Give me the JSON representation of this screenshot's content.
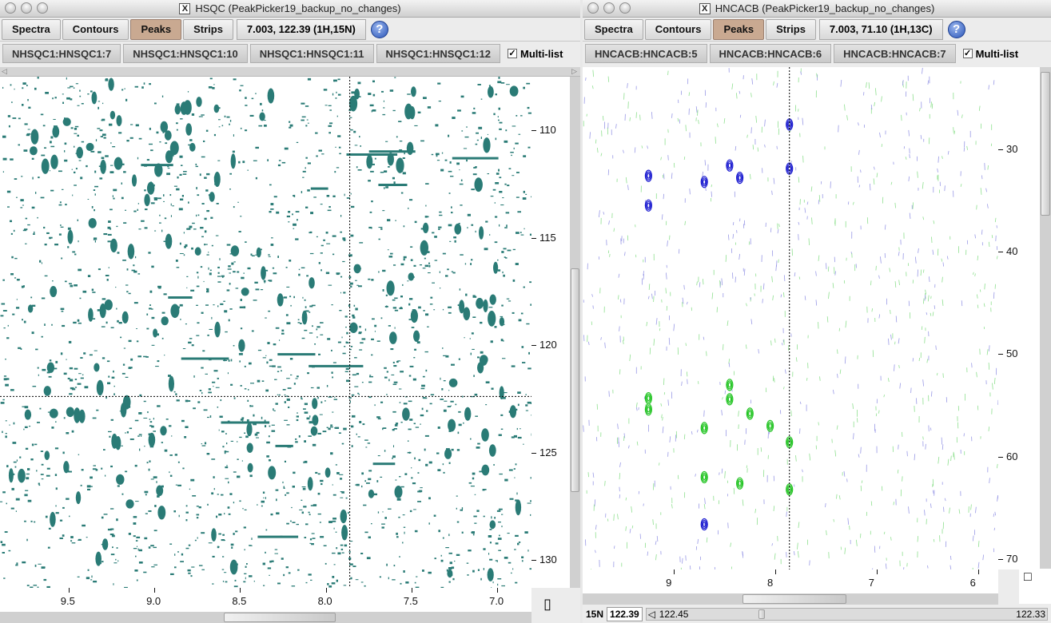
{
  "hsqc": {
    "title": "HSQC (PeakPicker19_backup_no_changes)",
    "toolbar": {
      "spectra": "Spectra",
      "contours": "Contours",
      "peaks": "Peaks",
      "strips": "Strips",
      "readout": "7.003, 122.39 (1H,15N)",
      "help": "?"
    },
    "spectra_buttons": [
      "NHSQC1:HNSQC1:7",
      "NHSQC1:HNSQC1:10",
      "NHSQC1:HNSQC1:11",
      "NHSQC1:HNSQC1:12"
    ],
    "multi_list": "Multi-list",
    "multi_list_checked": true,
    "y_axis": {
      "ticks": [
        "110",
        "115",
        "120",
        "125",
        "130"
      ],
      "range": [
        107.5,
        131.3
      ]
    },
    "x_axis": {
      "ticks": [
        "9.5",
        "9.0",
        "8.5",
        "8.0",
        "7.5",
        "7.0"
      ],
      "range": [
        9.9,
        6.8
      ]
    },
    "crosshair": {
      "x_ppm": 7.86,
      "y_ppm": 122.39
    },
    "peak_color": "#2a7b76",
    "bottom_corner_glyph": "▯"
  },
  "hncacb": {
    "title": "HNCACB (PeakPicker19_backup_no_changes)",
    "toolbar": {
      "spectra": "Spectra",
      "contours": "Contours",
      "peaks": "Peaks",
      "strips": "Strips",
      "readout": "7.003,  71.10 (1H,13C)",
      "help": "?"
    },
    "spectra_buttons": [
      "HNCACB:HNCACB:5",
      "HNCACB:HNCACB:6",
      "HNCACB:HNCACB:7"
    ],
    "multi_list": "Multi-list",
    "multi_list_checked": true,
    "y_axis": {
      "ticks": [
        "30",
        "40",
        "50",
        "60",
        "70"
      ],
      "range": [
        22.0,
        71.0
      ]
    },
    "x_axis": {
      "ticks": [
        "9",
        "8",
        "7",
        "6"
      ],
      "range": [
        9.9,
        5.8
      ]
    },
    "crosshair": {
      "x_ppm": 7.86
    },
    "positive_color": "#1a1ad0",
    "negative_color": "#22c422",
    "status": {
      "label": "15N",
      "value": "122.39",
      "left_value": "122.45",
      "right_value": "122.33"
    },
    "bottom_corner_glyph": "□"
  },
  "icons": {
    "window_lights": "traffic-light-buttons",
    "x11": "x11-icon",
    "help": "help-icon"
  }
}
